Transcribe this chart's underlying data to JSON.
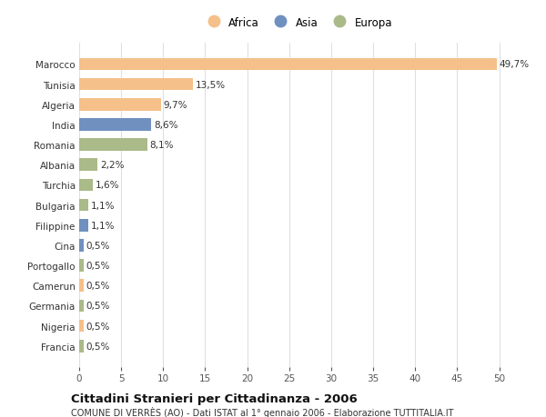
{
  "categories": [
    "Francia",
    "Nigeria",
    "Germania",
    "Camerun",
    "Portogallo",
    "Cina",
    "Filippine",
    "Bulgaria",
    "Turchia",
    "Albania",
    "Romania",
    "India",
    "Algeria",
    "Tunisia",
    "Marocco"
  ],
  "values": [
    0.5,
    0.5,
    0.5,
    0.5,
    0.5,
    0.5,
    1.1,
    1.1,
    1.6,
    2.2,
    8.1,
    8.6,
    9.7,
    13.5,
    49.7
  ],
  "continents": [
    "Europa",
    "Africa",
    "Europa",
    "Africa",
    "Europa",
    "Asia",
    "Asia",
    "Europa",
    "Europa",
    "Europa",
    "Europa",
    "Asia",
    "Africa",
    "Africa",
    "Africa"
  ],
  "labels": [
    "0,5%",
    "0,5%",
    "0,5%",
    "0,5%",
    "0,5%",
    "0,5%",
    "1,1%",
    "1,1%",
    "1,6%",
    "2,2%",
    "8,1%",
    "8,6%",
    "9,7%",
    "13,5%",
    "49,7%"
  ],
  "colors": {
    "Africa": "#F5C08A",
    "Asia": "#7090C0",
    "Europa": "#AABA88"
  },
  "xlim": [
    0,
    52
  ],
  "xticks": [
    0,
    5,
    10,
    15,
    20,
    25,
    30,
    35,
    40,
    45,
    50
  ],
  "title": "Cittadini Stranieri per Cittadinanza - 2006",
  "subtitle": "COMUNE DI VERRÈS (AO) - Dati ISTAT al 1° gennaio 2006 - Elaborazione TUTTITALIA.IT",
  "background_color": "#ffffff",
  "bar_height": 0.62,
  "label_fontsize": 7.5,
  "ytick_fontsize": 7.5,
  "xtick_fontsize": 7.5,
  "title_fontsize": 9.5,
  "subtitle_fontsize": 7.0,
  "legend_fontsize": 8.5
}
